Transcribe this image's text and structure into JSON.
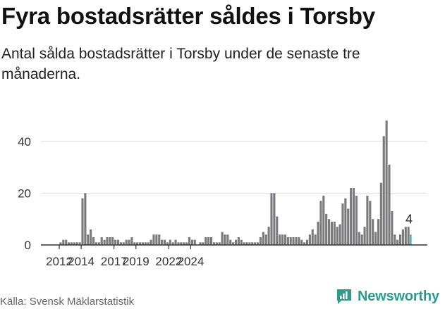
{
  "title": "Fyra bostadsrätter såldes i Torsby",
  "subtitle": "Antal sålda bostadsrätter i Torsby under de senaste tre månaderna.",
  "source": "Källa: Svensk Mäklarstatistik",
  "brand": "Newsworthy",
  "colors": {
    "bar": "#7a7a7e",
    "highlight": "#2a9d8f",
    "axis": "#333333",
    "grid": "#dddddd"
  },
  "chart_data": {
    "type": "bar",
    "title": "Fyra bostadsrätter såldes i Torsby",
    "xlabel": "",
    "ylabel": "",
    "ylim": [
      0,
      50
    ],
    "y_ticks": [
      0,
      20,
      40
    ],
    "x_ticks": [
      {
        "label": "2012",
        "value": 2012.0
      },
      {
        "label": "2014",
        "value": 2014.0
      },
      {
        "label": "2017",
        "value": 2017.0
      },
      {
        "label": "2019",
        "value": 2019.0
      },
      {
        "label": "2022",
        "value": 2022.0
      },
      {
        "label": "2024",
        "value": 2024.0
      }
    ],
    "x_start": 2012.0,
    "period": "quarter",
    "values": [
      1,
      2,
      2,
      1,
      1,
      1,
      1,
      1,
      18,
      20,
      4,
      6,
      3,
      1,
      1,
      3,
      2,
      3,
      3,
      3,
      2,
      2,
      1,
      1,
      2,
      2,
      3,
      1,
      1,
      1,
      1,
      1,
      1,
      2,
      4,
      4,
      4,
      2,
      2,
      1,
      2,
      1,
      2,
      1,
      1,
      1,
      1,
      3,
      2,
      2,
      0,
      1,
      1,
      3,
      3,
      3,
      1,
      1,
      1,
      5,
      4,
      4,
      2,
      1,
      2,
      3,
      2,
      1,
      1,
      1,
      1,
      1,
      1,
      3,
      5,
      4,
      7,
      20,
      20,
      11,
      4,
      4,
      4,
      3,
      3,
      3,
      3,
      3,
      2,
      1,
      2,
      4,
      6,
      4,
      9,
      17,
      19,
      12,
      10,
      9,
      9,
      7,
      8,
      16,
      18,
      14,
      22,
      22,
      19,
      5,
      4,
      7,
      19,
      17,
      10,
      5,
      10,
      24,
      42,
      48,
      31,
      13,
      4,
      2,
      4,
      6,
      7,
      7,
      4
    ],
    "annotation": {
      "label": "4",
      "value": 4
    }
  }
}
